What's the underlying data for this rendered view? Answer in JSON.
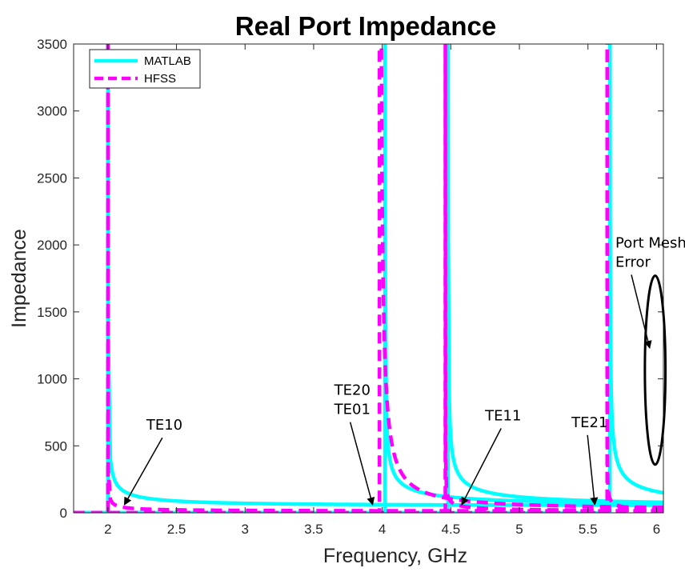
{
  "chart_data": {
    "type": "line",
    "title": "Real Port Impedance",
    "xlabel": "Frequency, GHz",
    "ylabel": "Impedance",
    "xlim": [
      1.75,
      6.05
    ],
    "ylim": [
      0,
      3500
    ],
    "xticks": [
      "2",
      "2.5",
      "3",
      "3.5",
      "4",
      "4.5",
      "5",
      "5.5",
      "6"
    ],
    "yticks": [
      "0",
      "500",
      "1000",
      "1500",
      "2000",
      "2500",
      "3000",
      "3500"
    ],
    "grid": false,
    "legend": {
      "placement": "top-left",
      "entries": [
        "MATLAB",
        "HFSS"
      ]
    },
    "series": [
      {
        "name": "MATLAB",
        "style": "solid",
        "color": "#00FFFF",
        "modes": [
          {
            "cutoff": 2.0,
            "scale": 0.14,
            "power": 1,
            "label": "TE10"
          },
          {
            "cutoff": 4.02,
            "scale": 0.14,
            "power": 1,
            "label": "TE20/TE01"
          },
          {
            "cutoff": 4.48,
            "scale": 0.14,
            "power": 1,
            "label": "TE11"
          },
          {
            "cutoff": 5.66,
            "scale": 0.14,
            "power": 1,
            "label": "TE21"
          }
        ]
      },
      {
        "name": "HFSS",
        "style": "dashed",
        "color": "#FF00FF",
        "modes": [
          {
            "cutoff": 2.0,
            "scale": 0.035,
            "power": 1,
            "label": "TE10"
          },
          {
            "cutoff": 3.98,
            "scale": 0.06,
            "power": 2,
            "label": "TE20/TE01"
          },
          {
            "cutoff": 4.46,
            "scale": 0.03,
            "power": 1,
            "label": "TE11"
          },
          {
            "cutoff": 5.64,
            "scale": 0.024,
            "power": 1,
            "label": "TE21"
          }
        ]
      }
    ],
    "annotations": [
      {
        "lines": [
          "TE10"
        ],
        "x": 2.28,
        "y": 620,
        "arrow_to": [
          2.12,
          60
        ]
      },
      {
        "lines": [
          "TE20",
          "TE01"
        ],
        "x": 3.65,
        "y": 880,
        "arrow_to": [
          3.93,
          60
        ]
      },
      {
        "lines": [
          "TE11"
        ],
        "x": 4.75,
        "y": 690,
        "arrow_to": [
          4.58,
          60
        ]
      },
      {
        "lines": [
          "TE21"
        ],
        "x": 5.38,
        "y": 640,
        "arrow_to": [
          5.55,
          60
        ]
      },
      {
        "lines": [
          "Port Mesh",
          "Error"
        ],
        "x": 5.7,
        "y": 1980,
        "arrow_to": [
          5.95,
          1230
        ]
      }
    ],
    "highlight": {
      "shape": "ellipse",
      "x": 5.99,
      "y": 1065,
      "rx": 0.075,
      "ry": 705,
      "color": "#000000"
    }
  }
}
